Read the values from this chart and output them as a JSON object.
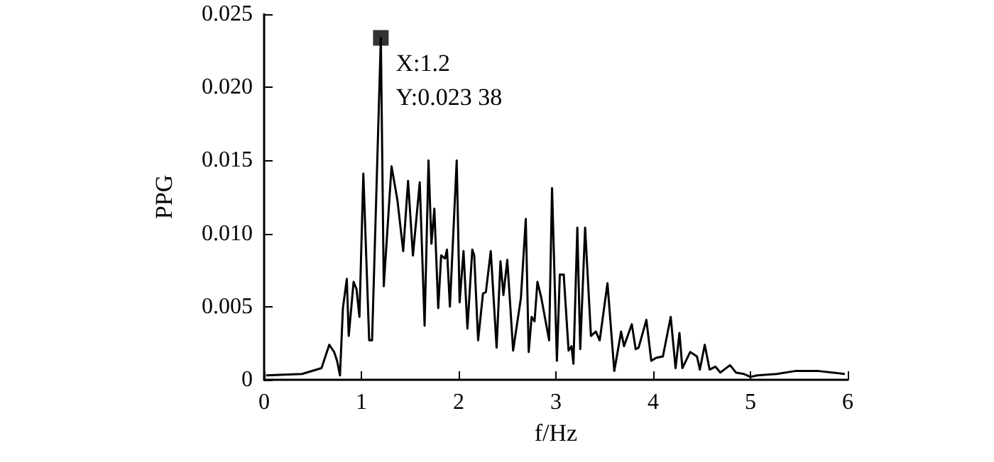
{
  "chart_data": {
    "type": "line",
    "xlabel": "f/Hz",
    "ylabel": "PPG",
    "series": [
      {
        "color": "#000000",
        "x": [
          0.02,
          0.39,
          0.59,
          0.67,
          0.72,
          0.75,
          0.78,
          0.81,
          0.85,
          0.87,
          0.92,
          0.95,
          0.98,
          1.02,
          1.08,
          1.11,
          1.2,
          1.23,
          1.31,
          1.37,
          1.43,
          1.48,
          1.53,
          1.6,
          1.65,
          1.69,
          1.72,
          1.75,
          1.79,
          1.82,
          1.86,
          1.88,
          1.91,
          1.98,
          2.01,
          2.05,
          2.09,
          2.14,
          2.16,
          2.2,
          2.25,
          2.28,
          2.33,
          2.39,
          2.43,
          2.46,
          2.5,
          2.56,
          2.64,
          2.69,
          2.72,
          2.75,
          2.78,
          2.81,
          2.85,
          2.93,
          2.96,
          3.01,
          3.04,
          3.08,
          3.13,
          3.16,
          3.18,
          3.22,
          3.25,
          3.3,
          3.36,
          3.41,
          3.45,
          3.53,
          3.6,
          3.67,
          3.7,
          3.78,
          3.82,
          3.85,
          3.93,
          3.98,
          4.03,
          4.1,
          4.18,
          4.23,
          4.27,
          4.3,
          4.38,
          4.45,
          4.48,
          4.53,
          4.58,
          4.64,
          4.69,
          4.79,
          4.85,
          4.93,
          5.0,
          5.07,
          5.27,
          5.46,
          5.7,
          5.97
        ],
        "values": [
          0.0003,
          0.0004,
          0.0008,
          0.0024,
          0.0019,
          0.0013,
          0.0003,
          0.0049,
          0.0069,
          0.003,
          0.0067,
          0.0062,
          0.0043,
          0.0141,
          0.0027,
          0.0027,
          0.02338,
          0.0064,
          0.0146,
          0.0123,
          0.0088,
          0.0136,
          0.0085,
          0.0135,
          0.0037,
          0.015,
          0.0093,
          0.0117,
          0.0049,
          0.0085,
          0.0083,
          0.0089,
          0.005,
          0.015,
          0.0053,
          0.0088,
          0.0035,
          0.0089,
          0.0085,
          0.0027,
          0.0059,
          0.006,
          0.0088,
          0.0022,
          0.0081,
          0.0058,
          0.0082,
          0.002,
          0.0056,
          0.011,
          0.0019,
          0.0043,
          0.004,
          0.0067,
          0.0056,
          0.0027,
          0.0131,
          0.0013,
          0.0072,
          0.0072,
          0.002,
          0.0023,
          0.0011,
          0.0104,
          0.0021,
          0.0104,
          0.003,
          0.0033,
          0.0027,
          0.0066,
          0.0006,
          0.0033,
          0.0023,
          0.0038,
          0.0021,
          0.0022,
          0.0041,
          0.0013,
          0.0015,
          0.0016,
          0.0043,
          0.0008,
          0.0032,
          0.0008,
          0.0019,
          0.0016,
          0.0007,
          0.0024,
          0.0007,
          0.0009,
          0.0005,
          0.001,
          0.0005,
          0.0004,
          0.0002,
          0.0003,
          0.0004,
          0.0006,
          0.0006,
          0.0004
        ]
      },
      {
        "type": "scatter",
        "color": "#000000",
        "marker": "square",
        "x": [
          1.2
        ],
        "values": [
          0.02338
        ]
      }
    ],
    "annotations": [
      {
        "text": "X:1.2\nY:0.023 38",
        "x": 1.2,
        "y": 0.02338
      }
    ],
    "xlim": [
      0,
      6
    ],
    "xticks": [
      0,
      1,
      2,
      3,
      4,
      5,
      6
    ],
    "ylim": [
      0,
      0.025
    ],
    "yticks": [
      0,
      0.005,
      {
        "value": 0.01,
        "label": "0.010"
      },
      0.015,
      {
        "value": 0.02,
        "label": "0.020"
      },
      0.025
    ],
    "grid": false,
    "marker": "none",
    "line_style": "solid"
  }
}
